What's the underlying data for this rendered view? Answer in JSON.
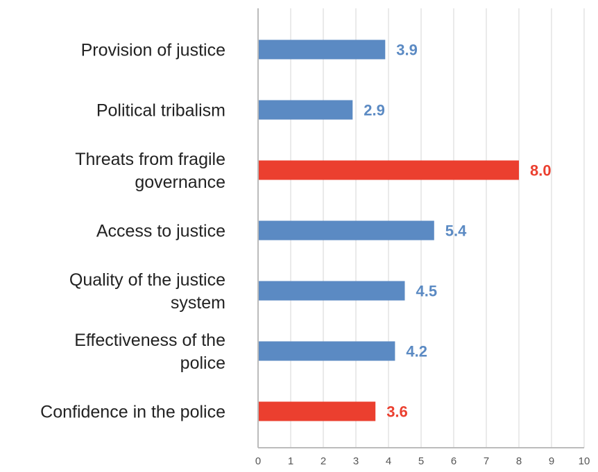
{
  "chart_data": {
    "type": "bar",
    "orientation": "horizontal",
    "categories": [
      [
        "Provision of justice"
      ],
      [
        "Political tribalism"
      ],
      [
        "Threats from fragile",
        "governance"
      ],
      [
        "Access to justice"
      ],
      [
        "Quality of the justice",
        "system"
      ],
      [
        "Effectiveness of the",
        "police"
      ],
      [
        "Confidence in the police"
      ]
    ],
    "values": [
      3.9,
      2.9,
      8.0,
      5.4,
      4.5,
      4.2,
      3.6
    ],
    "value_labels": [
      "3.9",
      "2.9",
      "8.0",
      "5.4",
      "4.5",
      "4.2",
      "3.6"
    ],
    "highlight": [
      false,
      false,
      true,
      false,
      false,
      false,
      true
    ],
    "xlim": [
      0,
      10
    ],
    "xticks": [
      "0",
      "1",
      "2",
      "3",
      "4",
      "5",
      "6",
      "7",
      "8",
      "9",
      "10"
    ],
    "grid": "vertical",
    "colors": {
      "default": "#5b8ac3",
      "highlight": "#eb3f2f",
      "grid": "#d6d6d6",
      "axis": "#bbbbbb"
    }
  }
}
